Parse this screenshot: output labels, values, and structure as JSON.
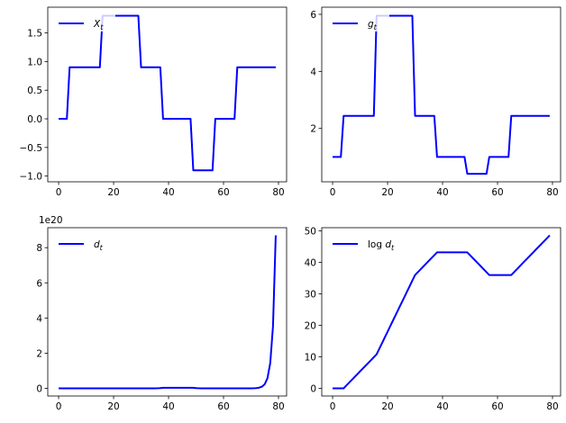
{
  "chart_data": [
    {
      "type": "line",
      "x": [
        0,
        1,
        2,
        3,
        4,
        5,
        6,
        7,
        8,
        9,
        10,
        11,
        12,
        13,
        14,
        15,
        16,
        17,
        18,
        19,
        20,
        21,
        22,
        23,
        24,
        25,
        26,
        27,
        28,
        29,
        30,
        31,
        32,
        33,
        34,
        35,
        36,
        37,
        38,
        39,
        40,
        41,
        42,
        43,
        44,
        45,
        46,
        47,
        48,
        49,
        50,
        51,
        52,
        53,
        54,
        55,
        56,
        57,
        58,
        59,
        60,
        61,
        62,
        63,
        64,
        65,
        66,
        67,
        68,
        69,
        70,
        71,
        72,
        73,
        74,
        75,
        76,
        77,
        78,
        79
      ],
      "series": [
        {
          "name": "X_t",
          "color": "#0000ff",
          "values": [
            0,
            0,
            0,
            0,
            0.9,
            0.9,
            0.9,
            0.9,
            0.9,
            0.9,
            0.9,
            0.9,
            0.9,
            0.9,
            0.9,
            0.9,
            1.8,
            1.8,
            1.8,
            1.8,
            1.8,
            1.8,
            1.8,
            1.8,
            1.8,
            1.8,
            1.8,
            1.8,
            1.8,
            1.8,
            0.9,
            0.9,
            0.9,
            0.9,
            0.9,
            0.9,
            0.9,
            0.9,
            0,
            0,
            0,
            0,
            0,
            0,
            0,
            0,
            0,
            0,
            0,
            -0.9,
            -0.9,
            -0.9,
            -0.9,
            -0.9,
            -0.9,
            -0.9,
            -0.9,
            0,
            0,
            0,
            0,
            0,
            0,
            0,
            0,
            0.9,
            0.9,
            0.9,
            0.9,
            0.9,
            0.9,
            0.9,
            0.9,
            0.9,
            0.9,
            0.9,
            0.9,
            0.9,
            0.9,
            0.9
          ]
        }
      ],
      "xlim": [
        -3.95,
        82.95
      ],
      "xticks": [
        0,
        20,
        40,
        60,
        80
      ],
      "ylim": [
        -1.1,
        1.95
      ],
      "yticks": [
        {
          "value": -1,
          "label": "−1.0"
        },
        {
          "value": -0.5,
          "label": "−0.5"
        },
        {
          "value": 0,
          "label": "0.0"
        },
        {
          "value": 0.5,
          "label": "0.5"
        },
        {
          "value": 1,
          "label": "1.0"
        },
        {
          "value": 1.5,
          "label": "1.5"
        }
      ],
      "legend": "upper left"
    },
    {
      "type": "line",
      "x": [
        0,
        1,
        2,
        3,
        4,
        5,
        6,
        7,
        8,
        9,
        10,
        11,
        12,
        13,
        14,
        15,
        16,
        17,
        18,
        19,
        20,
        21,
        22,
        23,
        24,
        25,
        26,
        27,
        28,
        29,
        30,
        31,
        32,
        33,
        34,
        35,
        36,
        37,
        38,
        39,
        40,
        41,
        42,
        43,
        44,
        45,
        46,
        47,
        48,
        49,
        50,
        51,
        52,
        53,
        54,
        55,
        56,
        57,
        58,
        59,
        60,
        61,
        62,
        63,
        64,
        65,
        66,
        67,
        68,
        69,
        70,
        71,
        72,
        73,
        74,
        75,
        76,
        77,
        78,
        79
      ],
      "series": [
        {
          "name": "g_t",
          "color": "#0000ff",
          "values": [
            1,
            1,
            1,
            1,
            2.44,
            2.44,
            2.44,
            2.44,
            2.44,
            2.44,
            2.44,
            2.44,
            2.44,
            2.44,
            2.44,
            2.44,
            5.95,
            5.95,
            5.95,
            5.95,
            5.95,
            5.95,
            5.95,
            5.95,
            5.95,
            5.95,
            5.95,
            5.95,
            5.95,
            5.95,
            2.44,
            2.44,
            2.44,
            2.44,
            2.44,
            2.44,
            2.44,
            2.44,
            1,
            1,
            1,
            1,
            1,
            1,
            1,
            1,
            1,
            1,
            1,
            0.41,
            0.41,
            0.41,
            0.41,
            0.41,
            0.41,
            0.41,
            0.41,
            1,
            1,
            1,
            1,
            1,
            1,
            1,
            1,
            2.44,
            2.44,
            2.44,
            2.44,
            2.44,
            2.44,
            2.44,
            2.44,
            2.44,
            2.44,
            2.44,
            2.44,
            2.44,
            2.44,
            2.44
          ]
        }
      ],
      "xlim": [
        -3.95,
        82.95
      ],
      "xticks": [
        0,
        20,
        40,
        60,
        80
      ],
      "ylim": [
        0.13,
        6.25
      ],
      "yticks": [
        2,
        4,
        6
      ],
      "legend": "upper left"
    },
    {
      "type": "line",
      "offset_text": "1e20",
      "x": [
        0,
        1,
        2,
        3,
        4,
        5,
        6,
        7,
        8,
        9,
        10,
        11,
        12,
        13,
        14,
        15,
        16,
        17,
        18,
        19,
        20,
        21,
        22,
        23,
        24,
        25,
        26,
        27,
        28,
        29,
        30,
        31,
        32,
        33,
        34,
        35,
        36,
        37,
        38,
        39,
        40,
        41,
        42,
        43,
        44,
        45,
        46,
        47,
        48,
        49,
        50,
        51,
        52,
        53,
        54,
        55,
        56,
        57,
        58,
        59,
        60,
        61,
        62,
        63,
        64,
        65,
        66,
        67,
        68,
        69,
        70,
        71,
        72,
        73,
        74,
        75,
        76,
        77,
        78,
        79
      ],
      "series": [
        {
          "name": "d_t",
          "color": "#0000ff",
          "values": [
            0,
            0,
            0,
            0,
            0,
            0,
            0,
            0,
            0,
            0,
            0,
            0,
            0,
            0,
            0,
            0,
            0,
            0,
            0,
            0,
            0,
            0,
            0,
            0,
            0,
            0,
            0,
            0,
            0,
            0,
            0,
            0,
            0,
            0,
            0.001,
            0.002,
            0.005,
            0.013,
            0.03,
            0.03,
            0.03,
            0.03,
            0.03,
            0.03,
            0.03,
            0.03,
            0.03,
            0.03,
            0.03,
            0.03,
            0.013,
            0.005,
            0.002,
            0.001,
            0,
            0,
            0,
            0,
            0,
            0,
            0,
            0,
            0,
            0,
            0,
            0,
            0,
            0,
            0,
            0,
            0.003,
            0.007,
            0.016,
            0.039,
            0.097,
            0.238,
            0.585,
            1.44,
            3.54,
            8.7
          ]
        }
      ],
      "xlim": [
        -3.95,
        82.95
      ],
      "xticks": [
        0,
        20,
        40,
        60,
        80
      ],
      "ylim": [
        -0.435,
        9.135
      ],
      "yticks": [
        0,
        2,
        4,
        6,
        8
      ],
      "legend": "upper left"
    },
    {
      "type": "line",
      "x": [
        0,
        1,
        2,
        3,
        4,
        5,
        6,
        7,
        8,
        9,
        10,
        11,
        12,
        13,
        14,
        15,
        16,
        17,
        18,
        19,
        20,
        21,
        22,
        23,
        24,
        25,
        26,
        27,
        28,
        29,
        30,
        31,
        32,
        33,
        34,
        35,
        36,
        37,
        38,
        39,
        40,
        41,
        42,
        43,
        44,
        45,
        46,
        47,
        48,
        49,
        50,
        51,
        52,
        53,
        54,
        55,
        56,
        57,
        58,
        59,
        60,
        61,
        62,
        63,
        64,
        65,
        66,
        67,
        68,
        69,
        70,
        71,
        72,
        73,
        74,
        75,
        76,
        77,
        78,
        79
      ],
      "series": [
        {
          "name": "log d_t",
          "color": "#0000ff",
          "values": [
            0,
            0,
            0,
            0,
            0,
            0.9,
            1.8,
            2.7,
            3.6,
            4.5,
            5.4,
            6.3,
            7.2,
            8.1,
            9,
            9.9,
            10.8,
            12.6,
            14.4,
            16.2,
            18,
            19.8,
            21.6,
            23.4,
            25.2,
            27,
            28.8,
            30.6,
            32.4,
            34.2,
            36,
            36.9,
            37.8,
            38.7,
            39.6,
            40.5,
            41.4,
            42.3,
            43.2,
            43.2,
            43.2,
            43.2,
            43.2,
            43.2,
            43.2,
            43.2,
            43.2,
            43.2,
            43.2,
            43.2,
            42.3,
            41.4,
            40.5,
            39.6,
            38.7,
            37.8,
            36.9,
            36,
            36,
            36,
            36,
            36,
            36,
            36,
            36,
            36,
            36.9,
            37.8,
            38.7,
            39.6,
            40.5,
            41.4,
            42.3,
            43.2,
            44.1,
            45,
            45.9,
            46.8,
            47.7,
            48.6
          ]
        }
      ],
      "xlim": [
        -3.95,
        82.95
      ],
      "xticks": [
        0,
        20,
        40,
        60,
        80
      ],
      "ylim": [
        -2.43,
        51.03
      ],
      "yticks": [
        0,
        10,
        20,
        30,
        40,
        50
      ],
      "legend": "upper left"
    }
  ]
}
